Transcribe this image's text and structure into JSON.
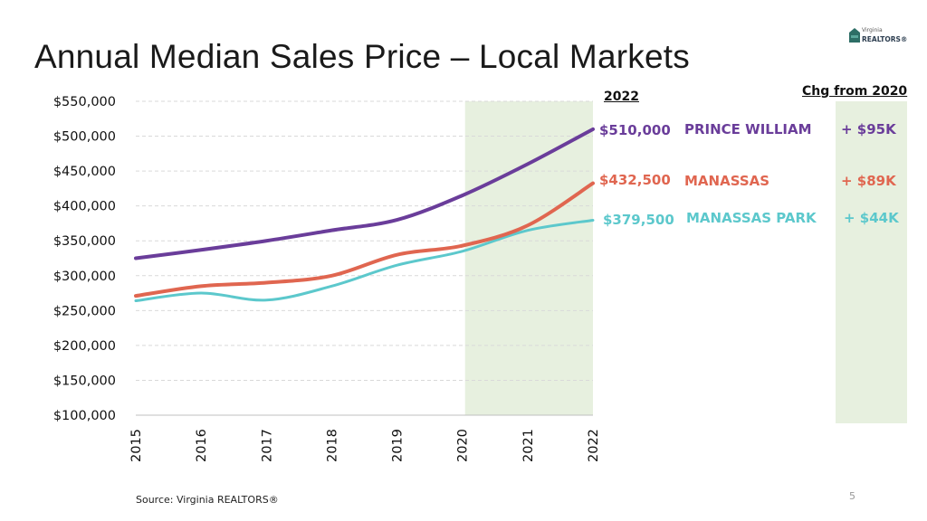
{
  "slide": {
    "title": "Annual Median Sales Price – Local Markets",
    "source": "Source: Virginia REALTORS®",
    "page_number": "5",
    "logo_top": "Virginia",
    "logo_main": "REALTORS®"
  },
  "headers": {
    "year": "2022",
    "change": "Chg from 2020"
  },
  "chart_data": {
    "type": "line",
    "title": "Annual Median Sales Price – Local Markets",
    "xlabel": "",
    "ylabel": "",
    "x": [
      "2015",
      "2016",
      "2017",
      "2018",
      "2019",
      "2020",
      "2021",
      "2022"
    ],
    "ylim": [
      100000,
      550000
    ],
    "yticks": [
      "$100,000",
      "$150,000",
      "$200,000",
      "$250,000",
      "$300,000",
      "$350,000",
      "$400,000",
      "$450,000",
      "$500,000",
      "$550,000"
    ],
    "ytick_values": [
      100000,
      150000,
      200000,
      250000,
      300000,
      350000,
      400000,
      450000,
      500000,
      550000
    ],
    "grid": true,
    "highlight_range": [
      "2020",
      "2022"
    ],
    "series": [
      {
        "name": "PRINCE WILLIAM",
        "color": "#6a3d9a",
        "values": [
          325000,
          337000,
          350000,
          365000,
          380000,
          415000,
          460000,
          510000
        ],
        "value_label": "$510,000",
        "change_label": "+ $95K"
      },
      {
        "name": "MANASSAS",
        "color": "#e06650",
        "values": [
          271000,
          285000,
          290000,
          300000,
          330000,
          343000,
          372000,
          432500
        ],
        "value_label": "$432,500",
        "change_label": "+ $89K"
      },
      {
        "name": "MANASSAS PARK",
        "color": "#5cc8cc",
        "values": [
          264000,
          275000,
          265000,
          285000,
          315000,
          335000,
          365000,
          379500
        ],
        "value_label": "$379,500",
        "change_label": "+ $44K"
      }
    ]
  },
  "colors": {
    "highlight": "#e7f0df",
    "grid": "#d9d9d9",
    "axis": "#bfbfbf"
  }
}
